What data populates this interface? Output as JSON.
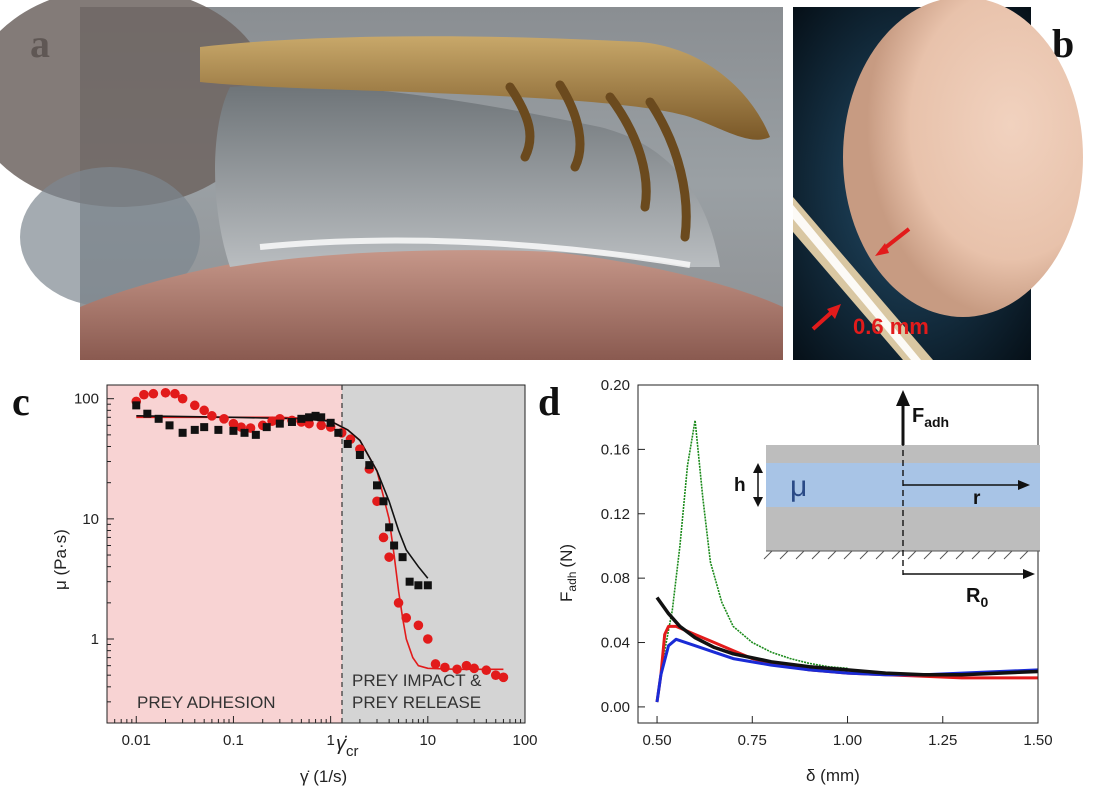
{
  "panels": {
    "a": {
      "letter": "a"
    },
    "b": {
      "letter": "b",
      "scale_label": "0.6 mm"
    },
    "c": {
      "letter": "c"
    },
    "d": {
      "letter": "d"
    }
  },
  "colors": {
    "adhesion_region": "#f8d3d3",
    "impact_region": "#d4d4d4",
    "red": "#e21b1b",
    "black": "#111111",
    "green": "#1a8a1a",
    "blue": "#1a2bd6",
    "inset_plate": "#bdbdbd",
    "inset_fluid": "#a8c4e6"
  },
  "chart_data": [
    {
      "type": "scatter",
      "panel": "c",
      "xlabel": "γ̇  (1/s)",
      "ylabel": "μ (Pa·s)",
      "xscale": "log",
      "yscale": "log",
      "xlim": [
        0.005,
        100
      ],
      "ylim": [
        0.2,
        130
      ],
      "x_ticks": [
        "0.01",
        "0.1",
        "1",
        "10",
        "100"
      ],
      "y_ticks": [
        "100",
        "10",
        "1"
      ],
      "critical_label": "γ̇",
      "critical_subscript": "cr",
      "critical_x": 1.3,
      "regions": [
        {
          "lines": [
            "PREY ADHESION"
          ]
        },
        {
          "lines": [
            "PREY IMPACT &",
            "PREY RELEASE"
          ]
        }
      ],
      "series": [
        {
          "marker": "circle",
          "color": "red",
          "points": [
            [
              0.01,
              95
            ],
            [
              0.012,
              108
            ],
            [
              0.015,
              110
            ],
            [
              0.02,
              112
            ],
            [
              0.025,
              110
            ],
            [
              0.03,
              100
            ],
            [
              0.04,
              88
            ],
            [
              0.05,
              80
            ],
            [
              0.06,
              72
            ],
            [
              0.08,
              68
            ],
            [
              0.1,
              62
            ],
            [
              0.12,
              58
            ],
            [
              0.15,
              57
            ],
            [
              0.2,
              60
            ],
            [
              0.25,
              65
            ],
            [
              0.3,
              68
            ],
            [
              0.4,
              66
            ],
            [
              0.5,
              64
            ],
            [
              0.6,
              62
            ],
            [
              0.8,
              60
            ],
            [
              1.0,
              58
            ],
            [
              1.3,
              52
            ],
            [
              1.6,
              46
            ],
            [
              2.0,
              38
            ],
            [
              2.5,
              26
            ],
            [
              3.0,
              14
            ],
            [
              3.5,
              7
            ],
            [
              4.0,
              4.8
            ],
            [
              5.0,
              2.0
            ],
            [
              6.0,
              1.5
            ],
            [
              8.0,
              1.3
            ],
            [
              10,
              1.0
            ],
            [
              12,
              0.62
            ],
            [
              15,
              0.58
            ],
            [
              20,
              0.56
            ],
            [
              25,
              0.6
            ],
            [
              30,
              0.57
            ],
            [
              40,
              0.55
            ],
            [
              50,
              0.5
            ],
            [
              60,
              0.48
            ]
          ]
        },
        {
          "marker": "square",
          "color": "black",
          "points": [
            [
              0.01,
              88
            ],
            [
              0.013,
              75
            ],
            [
              0.017,
              68
            ],
            [
              0.022,
              60
            ],
            [
              0.03,
              52
            ],
            [
              0.04,
              55
            ],
            [
              0.05,
              58
            ],
            [
              0.07,
              55
            ],
            [
              0.1,
              54
            ],
            [
              0.13,
              52
            ],
            [
              0.17,
              50
            ],
            [
              0.22,
              58
            ],
            [
              0.3,
              62
            ],
            [
              0.4,
              64
            ],
            [
              0.5,
              68
            ],
            [
              0.6,
              70
            ],
            [
              0.7,
              72
            ],
            [
              0.8,
              70
            ],
            [
              1.0,
              63
            ],
            [
              1.2,
              52
            ],
            [
              1.5,
              42
            ],
            [
              2.0,
              34
            ],
            [
              2.5,
              28
            ],
            [
              3.0,
              19
            ],
            [
              3.5,
              14
            ],
            [
              4.0,
              8.5
            ],
            [
              4.5,
              6.0
            ],
            [
              5.5,
              4.8
            ],
            [
              6.5,
              3.0
            ],
            [
              8.0,
              2.8
            ],
            [
              10,
              2.8
            ]
          ]
        }
      ],
      "fits": [
        {
          "color": "red",
          "points": [
            [
              0.01,
              70
            ],
            [
              0.03,
              70
            ],
            [
              0.1,
              70
            ],
            [
              0.3,
              70
            ],
            [
              0.7,
              68
            ],
            [
              1.0,
              65
            ],
            [
              1.5,
              55
            ],
            [
              2.0,
              45
            ],
            [
              3.0,
              25
            ],
            [
              4.0,
              10
            ],
            [
              4.5,
              5
            ],
            [
              5.0,
              2.5
            ],
            [
              5.5,
              1.5
            ],
            [
              6.0,
              1.0
            ],
            [
              7.0,
              0.7
            ],
            [
              8.0,
              0.6
            ],
            [
              10,
              0.57
            ],
            [
              20,
              0.56
            ],
            [
              60,
              0.56
            ]
          ]
        },
        {
          "color": "black",
          "points": [
            [
              0.01,
              72
            ],
            [
              0.1,
              70
            ],
            [
              0.5,
              68
            ],
            [
              1.0,
              65
            ],
            [
              1.5,
              55
            ],
            [
              2.0,
              45
            ],
            [
              3.0,
              25
            ],
            [
              4.0,
              14
            ],
            [
              5.0,
              8
            ],
            [
              6.0,
              5.5
            ],
            [
              8.0,
              4
            ],
            [
              10,
              3.2
            ]
          ]
        }
      ]
    },
    {
      "type": "line",
      "panel": "d",
      "xlabel": "δ (mm)",
      "ylabel_main": "F",
      "ylabel_sub": "adh",
      "ylabel_unit": "(N)",
      "xlim": [
        0.45,
        1.5
      ],
      "ylim": [
        -0.01,
        0.2
      ],
      "x_ticks": [
        "0.50",
        "0.75",
        "1.00",
        "1.25",
        "1.50"
      ],
      "y_ticks": [
        "0.00",
        "0.04",
        "0.08",
        "0.12",
        "0.16",
        "0.20"
      ],
      "inset": {
        "force_main": "F",
        "force_sub": "adh",
        "height_label": "h",
        "viscosity_label": "μ",
        "radius_label": "r",
        "outer_radius_main": "R",
        "outer_radius_sub": "0"
      },
      "series": [
        {
          "color": "green",
          "points": [
            [
              0.5,
              0.003
            ],
            [
              0.52,
              0.035
            ],
            [
              0.54,
              0.06
            ],
            [
              0.56,
              0.1
            ],
            [
              0.58,
              0.15
            ],
            [
              0.6,
              0.178
            ],
            [
              0.62,
              0.13
            ],
            [
              0.64,
              0.09
            ],
            [
              0.67,
              0.065
            ],
            [
              0.7,
              0.05
            ],
            [
              0.75,
              0.04
            ],
            [
              0.8,
              0.034
            ],
            [
              0.85,
              0.03
            ],
            [
              0.9,
              0.027
            ],
            [
              0.95,
              0.025
            ],
            [
              1.0,
              0.024
            ]
          ]
        },
        {
          "color": "red",
          "points": [
            [
              0.5,
              0.003
            ],
            [
              0.51,
              0.02
            ],
            [
              0.52,
              0.045
            ],
            [
              0.53,
              0.05
            ],
            [
              0.55,
              0.05
            ],
            [
              0.6,
              0.045
            ],
            [
              0.65,
              0.04
            ],
            [
              0.7,
              0.035
            ],
            [
              0.75,
              0.03
            ],
            [
              0.8,
              0.027
            ],
            [
              0.9,
              0.023
            ],
            [
              1.0,
              0.021
            ],
            [
              1.1,
              0.02
            ],
            [
              1.2,
              0.019
            ],
            [
              1.3,
              0.018
            ],
            [
              1.4,
              0.018
            ],
            [
              1.5,
              0.018
            ]
          ]
        },
        {
          "color": "blue",
          "points": [
            [
              0.5,
              0.003
            ],
            [
              0.51,
              0.02
            ],
            [
              0.53,
              0.038
            ],
            [
              0.55,
              0.042
            ],
            [
              0.6,
              0.038
            ],
            [
              0.65,
              0.034
            ],
            [
              0.7,
              0.03
            ],
            [
              0.8,
              0.026
            ],
            [
              0.9,
              0.023
            ],
            [
              1.0,
              0.021
            ],
            [
              1.1,
              0.02
            ],
            [
              1.2,
              0.02
            ],
            [
              1.3,
              0.021
            ],
            [
              1.4,
              0.022
            ],
            [
              1.5,
              0.023
            ]
          ]
        },
        {
          "color": "black",
          "points": [
            [
              0.5,
              0.068
            ],
            [
              0.53,
              0.058
            ],
            [
              0.56,
              0.05
            ],
            [
              0.6,
              0.043
            ],
            [
              0.65,
              0.037
            ],
            [
              0.7,
              0.033
            ],
            [
              0.8,
              0.028
            ],
            [
              0.9,
              0.025
            ],
            [
              1.0,
              0.023
            ],
            [
              1.1,
              0.021
            ],
            [
              1.2,
              0.02
            ],
            [
              1.3,
              0.02
            ],
            [
              1.4,
              0.021
            ],
            [
              1.5,
              0.022
            ]
          ]
        }
      ]
    }
  ]
}
